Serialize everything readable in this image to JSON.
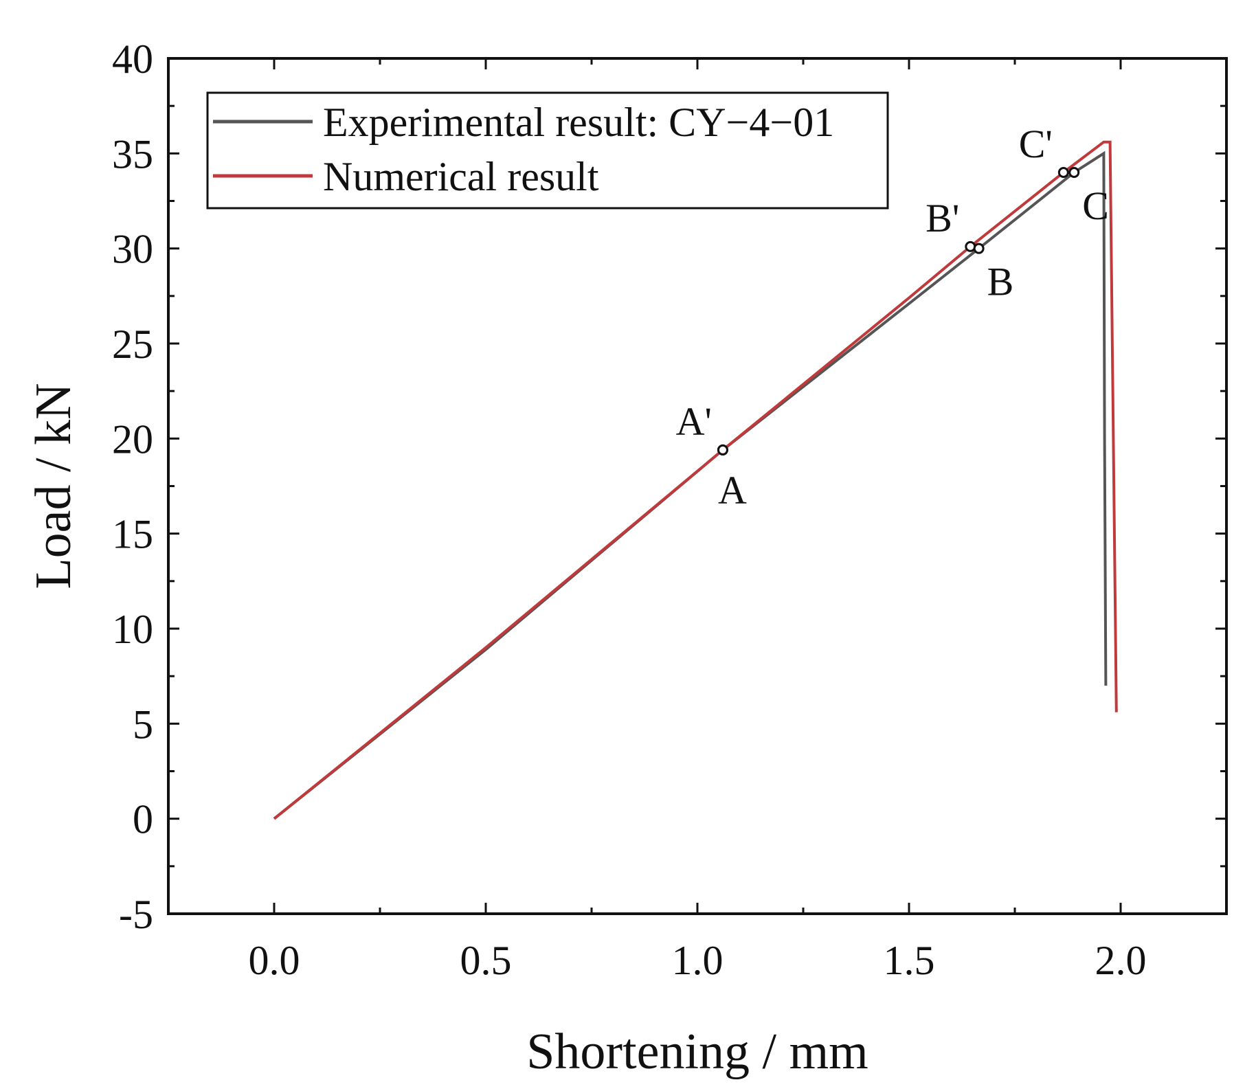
{
  "chart_data": {
    "type": "line",
    "title": "",
    "xlabel": "Shortening / mm",
    "ylabel": "Load / kN",
    "xlim": [
      -0.25,
      2.25
    ],
    "ylim": [
      -5,
      40
    ],
    "x_ticks": [
      0.0,
      0.5,
      1.0,
      1.5,
      2.0
    ],
    "x_tick_labels": [
      "0.0",
      "0.5",
      "1.0",
      "1.5",
      "2.0"
    ],
    "x_minor_step": 0.25,
    "y_ticks": [
      -5,
      0,
      5,
      10,
      15,
      20,
      25,
      30,
      35,
      40
    ],
    "y_tick_labels": [
      "-5",
      "0",
      "5",
      "10",
      "15",
      "20",
      "25",
      "30",
      "35",
      "40"
    ],
    "y_minor_step": 2.5,
    "grid": false,
    "legend_position": "top-left",
    "series": [
      {
        "name": "Experimental result: CY−4−01",
        "color": "#555555",
        "x": [
          0.0,
          0.5,
          1.06,
          1.5,
          1.665,
          1.89,
          1.96,
          1.962,
          1.965
        ],
        "y": [
          0.0,
          8.9,
          19.4,
          27.1,
          30.0,
          34.0,
          35.0,
          20.0,
          7.0
        ]
      },
      {
        "name": "Numerical result",
        "color": "#c0393b",
        "x": [
          0.0,
          0.5,
          1.06,
          1.5,
          1.645,
          1.865,
          1.96,
          1.975,
          1.99
        ],
        "y": [
          0.0,
          9.0,
          19.4,
          27.4,
          30.1,
          34.0,
          35.6,
          35.6,
          5.6
        ]
      }
    ],
    "annotations": [
      {
        "label": "A'",
        "x": 1.06,
        "y": 19.4,
        "anchor": "above-left"
      },
      {
        "label": "A",
        "x": 1.06,
        "y": 19.4,
        "anchor": "below"
      },
      {
        "label": "B'",
        "x": 1.645,
        "y": 30.1,
        "anchor": "above-left"
      },
      {
        "label": "B",
        "x": 1.665,
        "y": 30.0,
        "anchor": "below-right"
      },
      {
        "label": "C'",
        "x": 1.865,
        "y": 34.0,
        "anchor": "above-left"
      },
      {
        "label": "C",
        "x": 1.89,
        "y": 34.0,
        "anchor": "below-right"
      }
    ]
  }
}
